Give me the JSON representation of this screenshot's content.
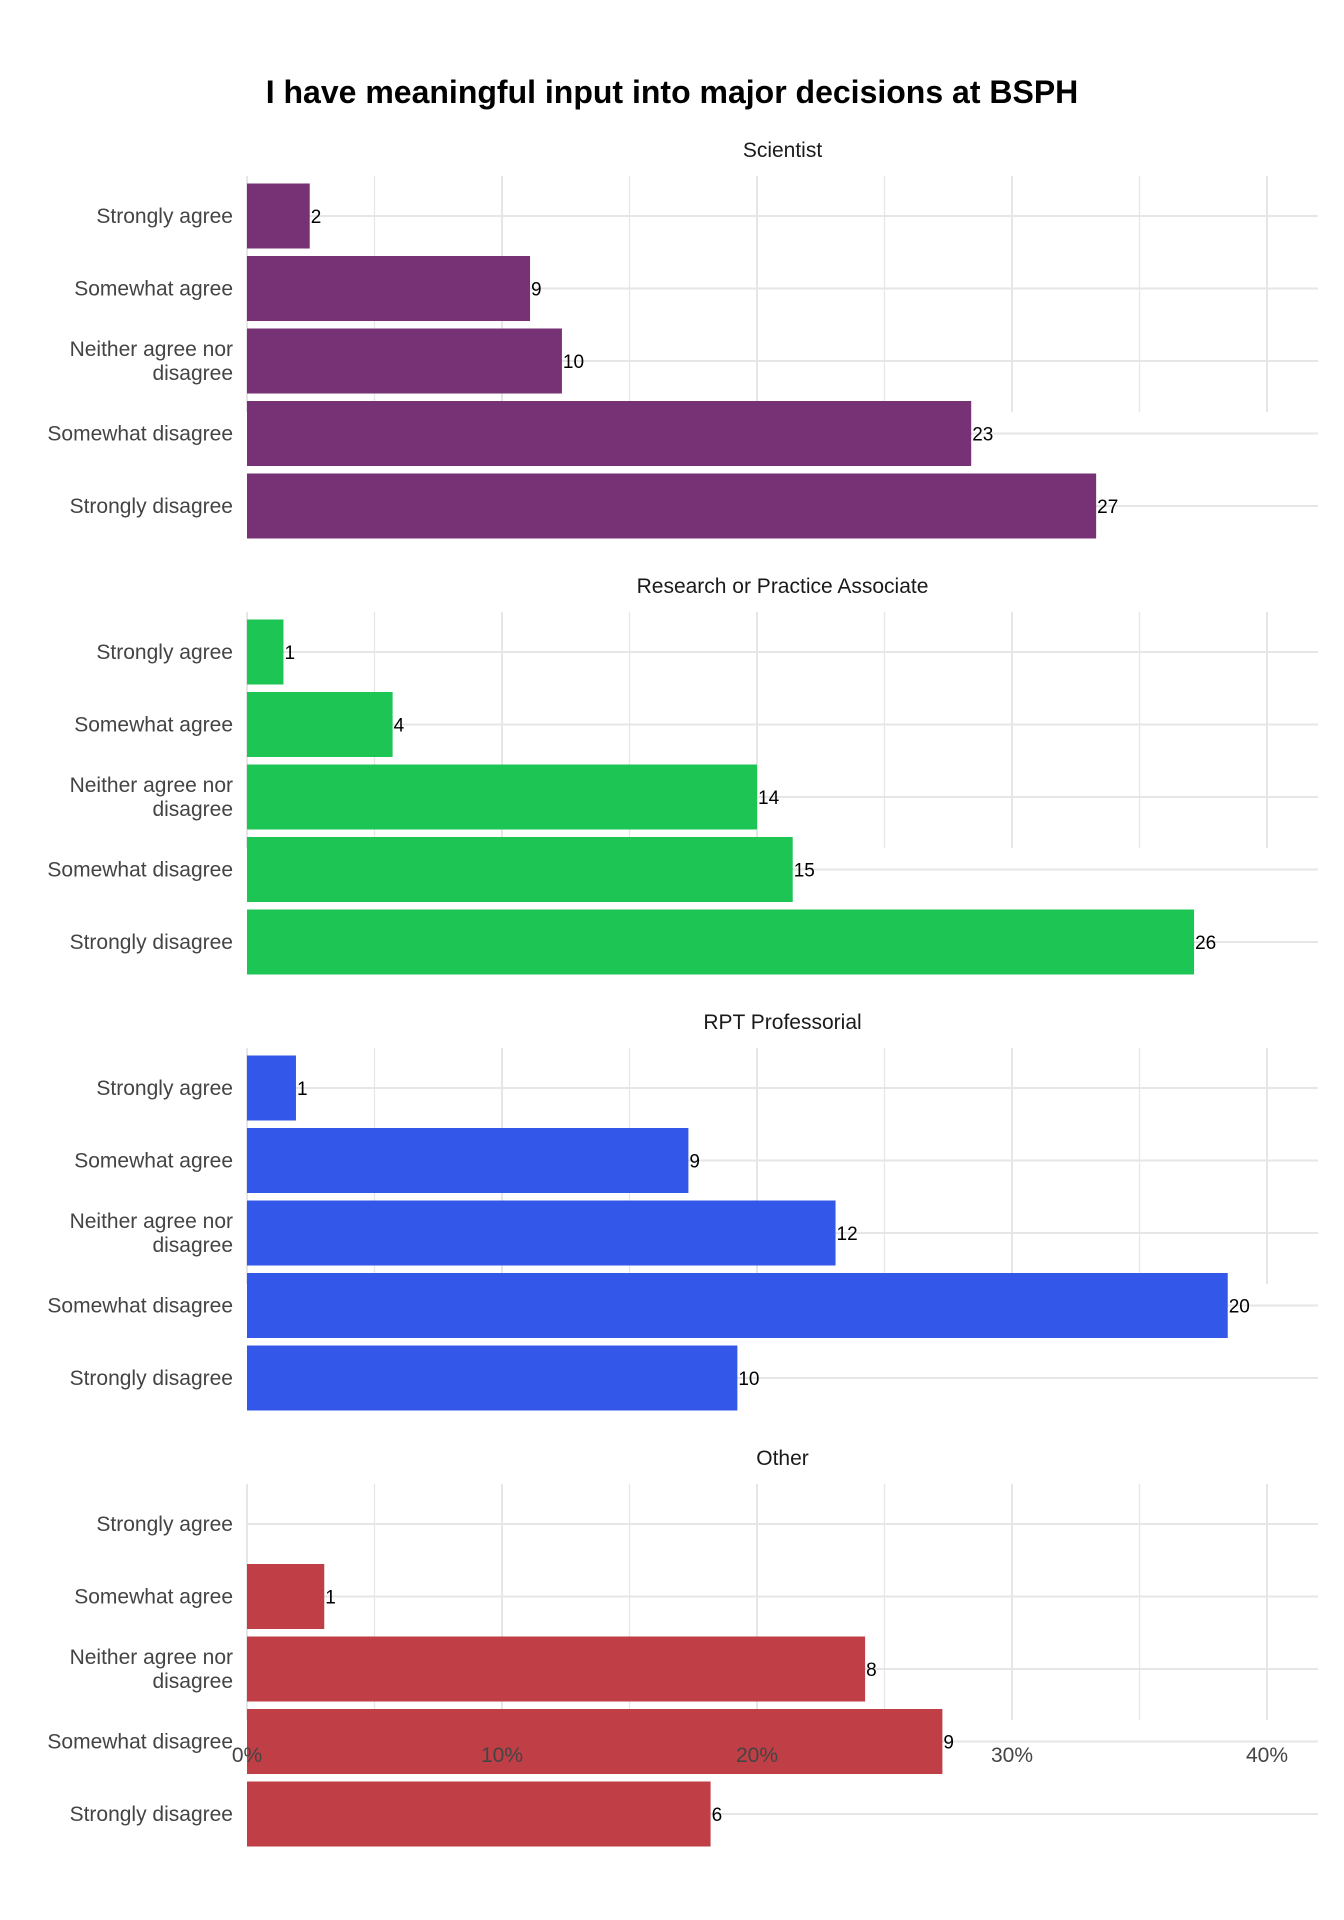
{
  "chart_data": {
    "type": "bar",
    "orientation": "horizontal",
    "title": "I have meaningful input into major decisions at BSPH",
    "xlabel": "",
    "ylabel": "",
    "x_axis_format": "percent",
    "xlim": [
      0,
      0.42
    ],
    "x_ticks": [
      0,
      0.1,
      0.2,
      0.3,
      0.4
    ],
    "x_tick_labels": [
      "0%",
      "10%",
      "20%",
      "30%",
      "40%"
    ],
    "grid": true,
    "legend": "none",
    "categories": [
      "Strongly agree",
      "Somewhat agree",
      "Neither agree nor disagree",
      "Somewhat disagree",
      "Strongly disagree"
    ],
    "category_display": [
      [
        "Strongly agree"
      ],
      [
        "Somewhat agree"
      ],
      [
        "Neither agree nor",
        "disagree"
      ],
      [
        "Somewhat disagree"
      ],
      [
        "Strongly disagree"
      ]
    ],
    "facets": [
      {
        "name": "Scientist",
        "color": "#773275",
        "percents": [
          0.0246,
          0.111,
          0.1235,
          0.284,
          0.333
        ],
        "counts": [
          2,
          9,
          10,
          23,
          27
        ]
      },
      {
        "name": "Research or Practice Associate",
        "color": "#1DC654",
        "percents": [
          0.0143,
          0.0571,
          0.2,
          0.214,
          0.3714
        ],
        "counts": [
          1,
          4,
          14,
          15,
          26
        ]
      },
      {
        "name": "RPT Professorial",
        "color": "#3357E8",
        "percents": [
          0.0192,
          0.1731,
          0.2308,
          0.3846,
          0.1923
        ],
        "counts": [
          1,
          9,
          12,
          20,
          10
        ]
      },
      {
        "name": "Other",
        "color": "#C03E46",
        "percents": [
          0,
          0.0303,
          0.2424,
          0.2727,
          0.1818
        ],
        "counts": [
          null,
          1,
          8,
          9,
          6
        ]
      }
    ]
  }
}
